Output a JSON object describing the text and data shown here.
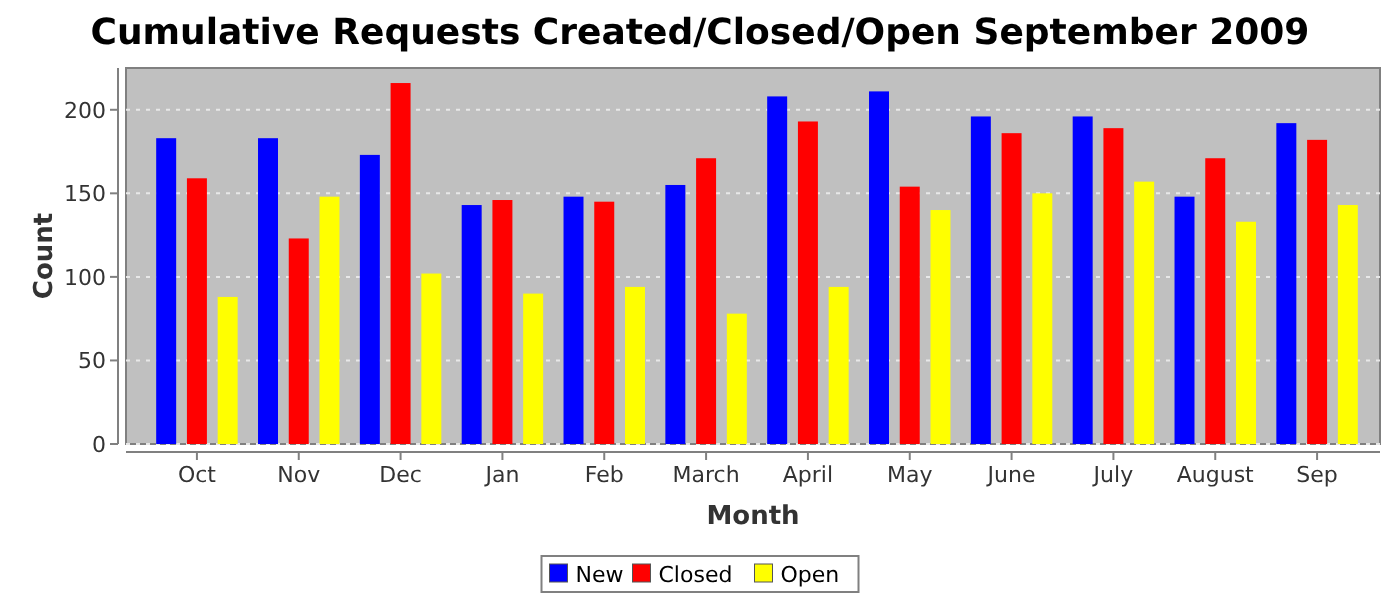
{
  "chart_data": {
    "type": "bar",
    "title": "Cumulative Requests Created/Closed/Open September 2009",
    "xlabel": "Month",
    "ylabel": "Count",
    "categories": [
      "Oct",
      "Nov",
      "Dec",
      "Jan",
      "Feb",
      "March",
      "April",
      "May",
      "June",
      "July",
      "August",
      "Sep"
    ],
    "series": [
      {
        "name": "New",
        "color": "#0000ff",
        "values": [
          183,
          183,
          173,
          143,
          148,
          155,
          208,
          211,
          196,
          196,
          148,
          192
        ]
      },
      {
        "name": "Closed",
        "color": "#ff0000",
        "values": [
          159,
          123,
          216,
          146,
          145,
          171,
          193,
          154,
          186,
          189,
          171,
          182
        ]
      },
      {
        "name": "Open",
        "color": "#ffff00",
        "values": [
          88,
          148,
          102,
          90,
          94,
          78,
          94,
          140,
          150,
          157,
          133,
          143
        ]
      }
    ],
    "ylim": [
      0,
      225
    ],
    "yticks": [
      0,
      50,
      100,
      150,
      200
    ],
    "grid": "y",
    "legend": "bottom"
  }
}
